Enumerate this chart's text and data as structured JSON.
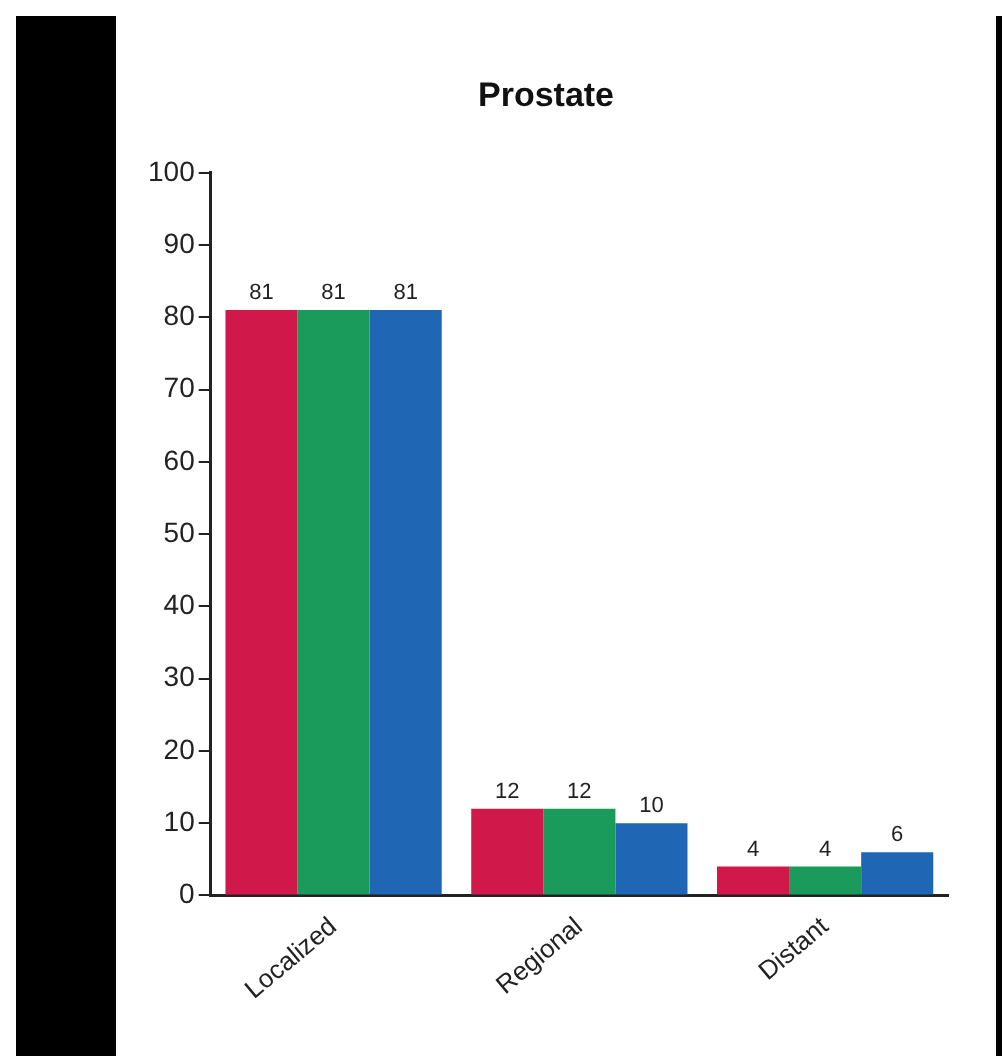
{
  "chart_data": {
    "type": "bar",
    "title": "Prostate",
    "categories": [
      "Localized",
      "Regional",
      "Distant"
    ],
    "series": [
      {
        "color": "#d0184a",
        "values": [
          81,
          12,
          4
        ]
      },
      {
        "color": "#1a9b5b",
        "values": [
          81,
          12,
          4
        ]
      },
      {
        "color": "#1f67b5",
        "values": [
          81,
          10,
          6
        ]
      }
    ],
    "ylim": [
      0,
      100
    ],
    "yticks": [
      0,
      10,
      20,
      30,
      40,
      50,
      60,
      70,
      80,
      90,
      100
    ],
    "grid": false,
    "legend": false,
    "data_labels": true
  }
}
